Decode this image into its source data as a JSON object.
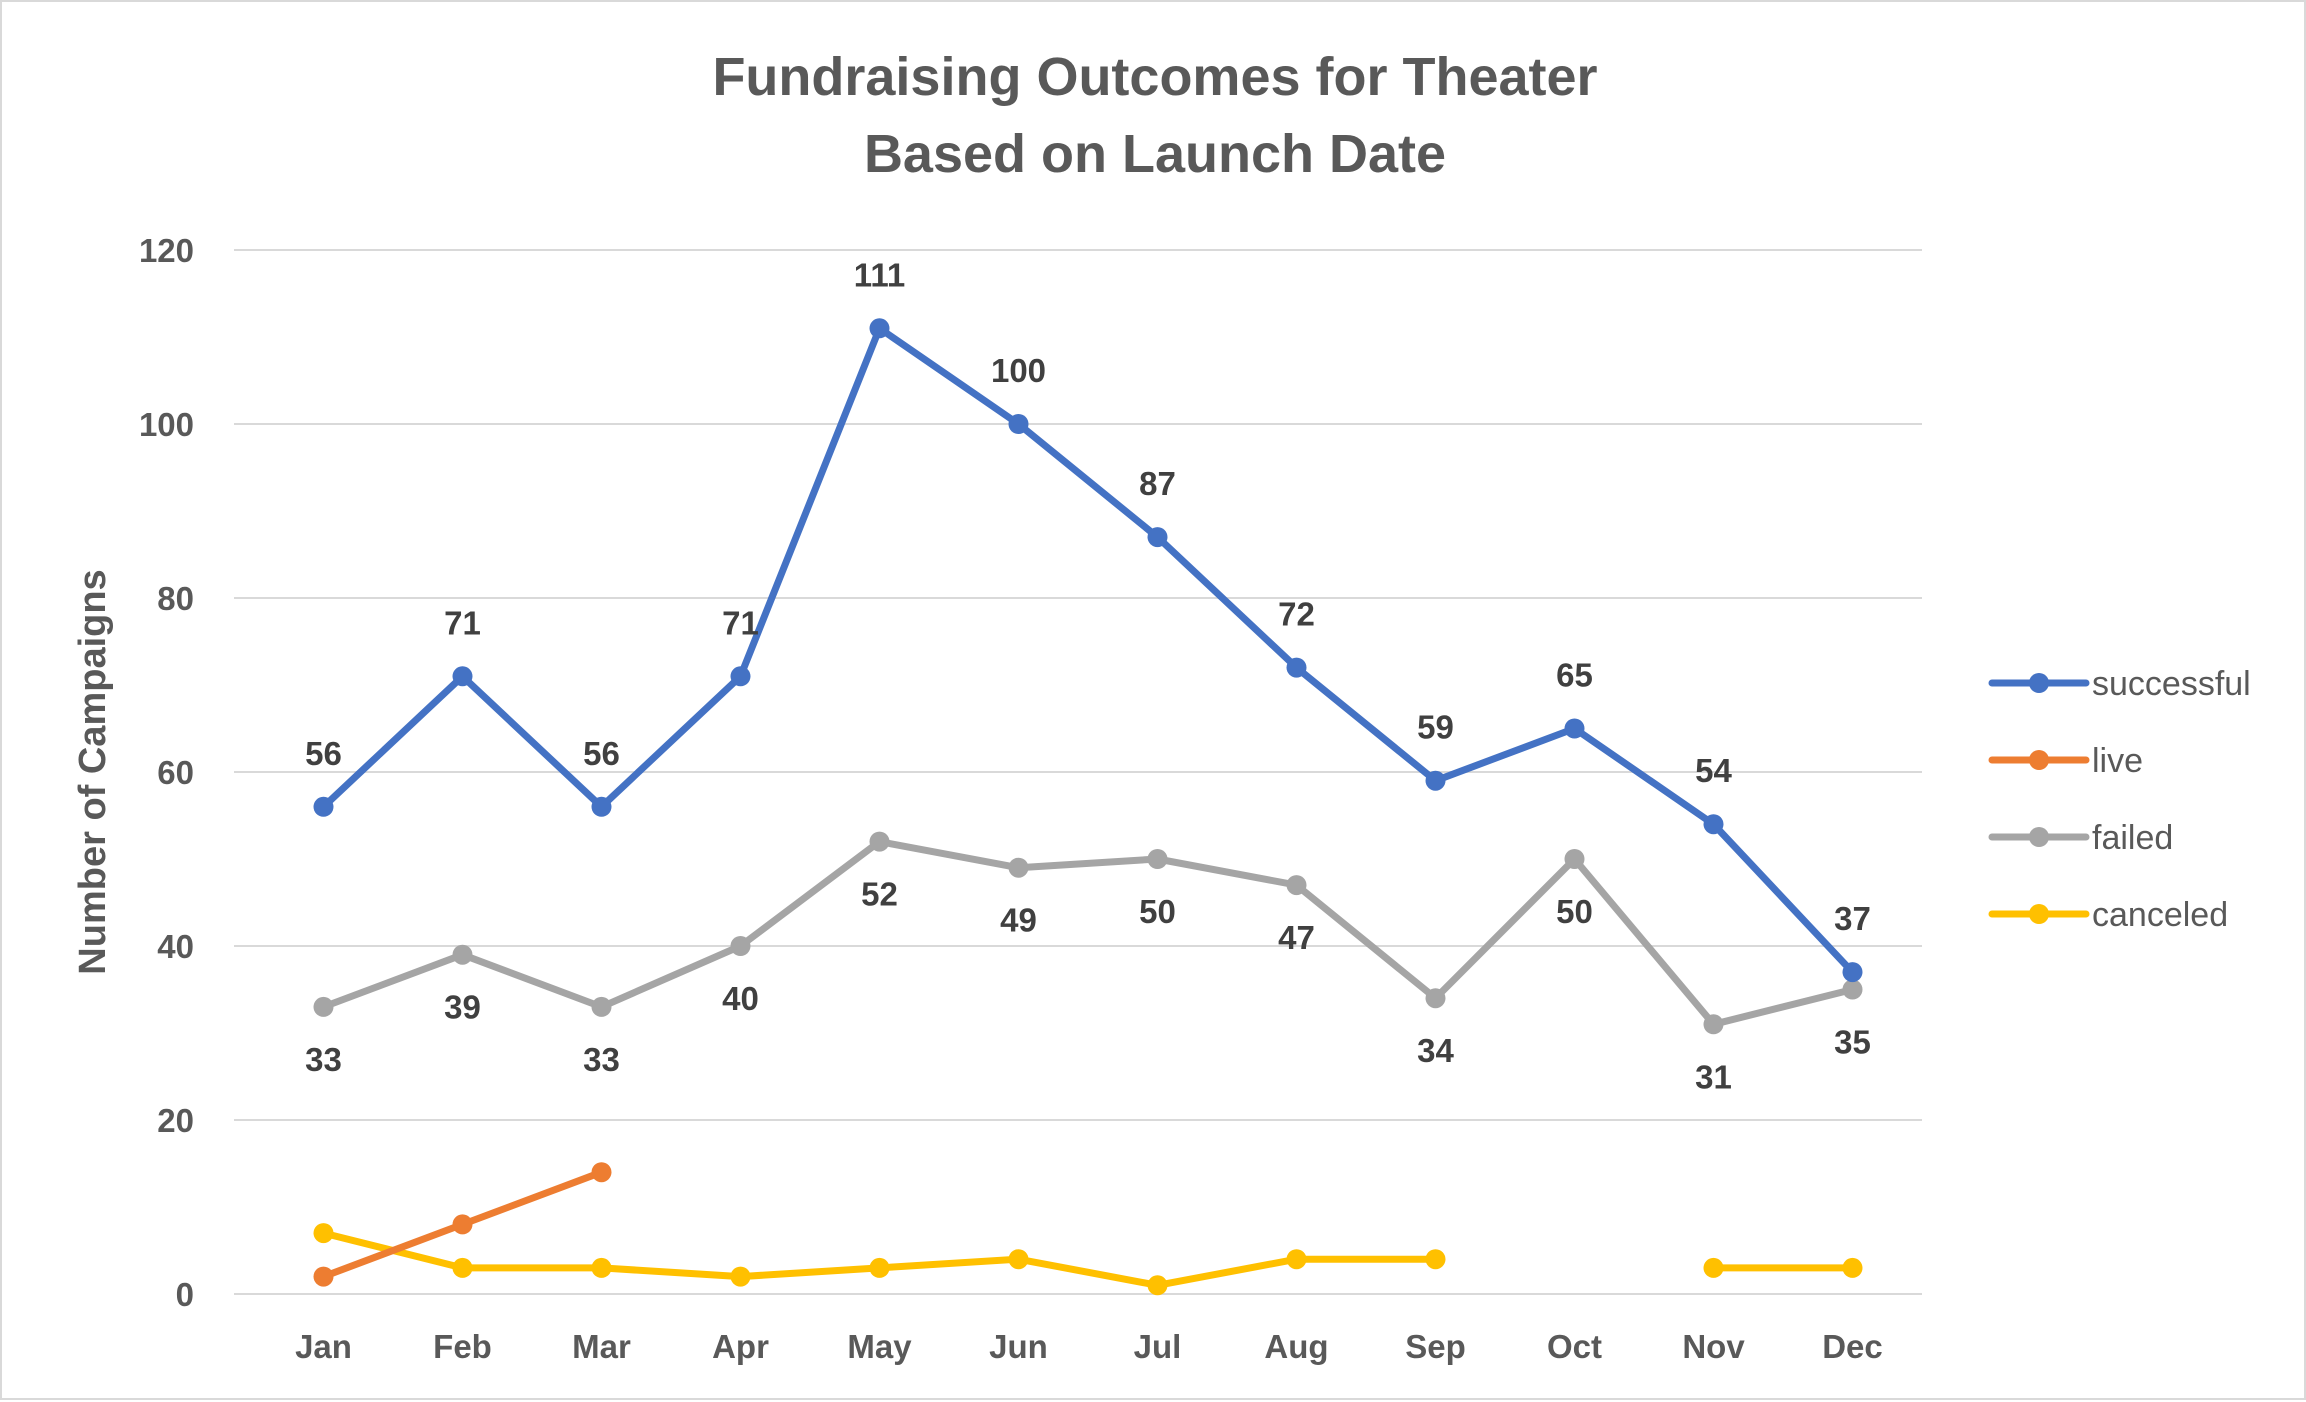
{
  "chart_data": {
    "type": "line",
    "title": "Fundraising Outcomes for Theater",
    "subtitle": "Based on Launch Date",
    "xlabel": "",
    "ylabel": "Number of Campaigns",
    "categories": [
      "Jan",
      "Feb",
      "Mar",
      "Apr",
      "May",
      "Jun",
      "Jul",
      "Aug",
      "Sep",
      "Oct",
      "Nov",
      "Dec"
    ],
    "ylim": [
      0,
      120
    ],
    "yticks": [
      0,
      20,
      40,
      60,
      80,
      100,
      120
    ],
    "grid": true,
    "legend_position": "right",
    "series": [
      {
        "name": "successful",
        "color": "#4472C4",
        "values": [
          56,
          71,
          56,
          71,
          111,
          100,
          87,
          72,
          59,
          65,
          54,
          37
        ],
        "data_labels": true,
        "label_position": "above"
      },
      {
        "name": "live",
        "color": "#ED7D31",
        "values": [
          2,
          8,
          14,
          null,
          null,
          null,
          null,
          null,
          null,
          null,
          null,
          null
        ],
        "data_labels": false
      },
      {
        "name": "failed",
        "color": "#A5A5A5",
        "values": [
          33,
          39,
          33,
          40,
          52,
          49,
          50,
          47,
          34,
          50,
          31,
          35
        ],
        "data_labels": true,
        "label_position": "below"
      },
      {
        "name": "canceled",
        "color": "#FFC000",
        "values": [
          7,
          3,
          3,
          2,
          3,
          4,
          1,
          4,
          4,
          null,
          3,
          3
        ],
        "data_labels": false
      }
    ]
  }
}
